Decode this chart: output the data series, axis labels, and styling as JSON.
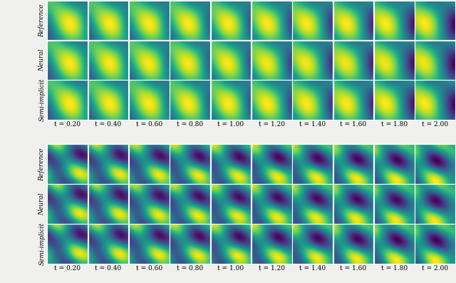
{
  "time_labels": [
    "t = 0.20",
    "t = 0.40",
    "t = 0.60",
    "t = 0.80",
    "t = 1.00",
    "t = 1.20",
    "t = 1.40",
    "t = 1.60",
    "t = 1.80",
    "t = 2.00"
  ],
  "row_labels": [
    "Reference",
    "Neural",
    "Semi-implicit"
  ],
  "colormap": "viridis",
  "n_cols": 10,
  "label_fontsize": 6.5,
  "tick_fontsize": 6.5,
  "bg_color": "#f0f0ee",
  "spine_color": "white",
  "spine_lw": 0.8
}
